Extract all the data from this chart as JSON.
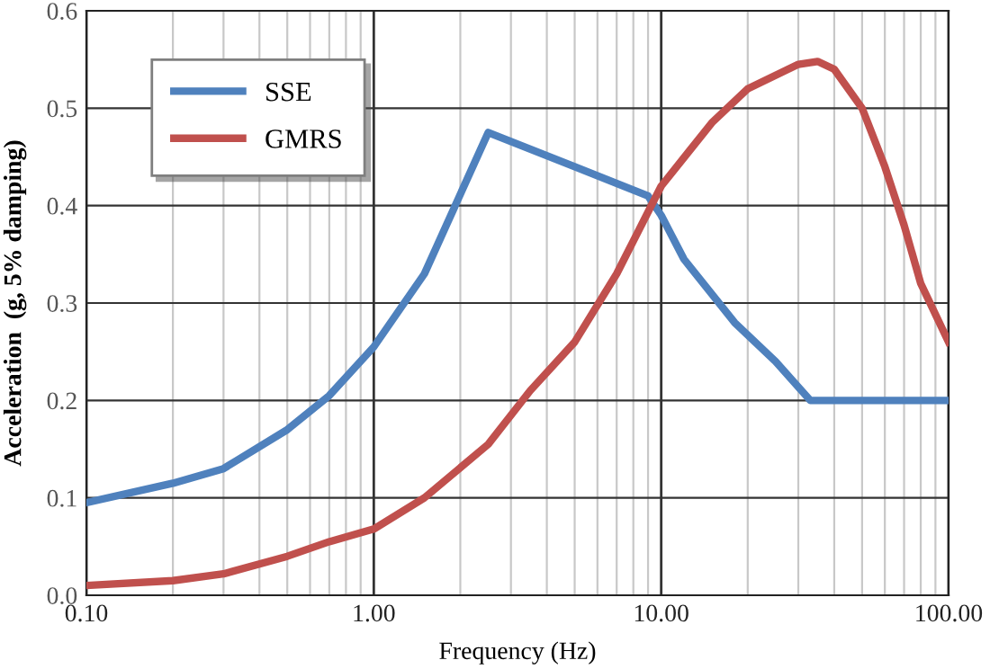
{
  "chart_data": {
    "type": "line",
    "xlabel": "Frequency (Hz)",
    "ylabel": "Acceleration  (g, 5% damping)",
    "log": "x",
    "grid": true,
    "legend": "top left",
    "marker": "none",
    "line_style": "solid",
    "xlim": [
      0.1,
      100
    ],
    "ylim": [
      0,
      0.6
    ],
    "xticks": [
      {
        "value": 0.1,
        "label": "0.10"
      },
      {
        "value": 0.2,
        "label": null
      },
      {
        "value": 0.3,
        "label": null
      },
      {
        "value": 0.4,
        "label": null
      },
      {
        "value": 0.5,
        "label": null
      },
      {
        "value": 0.6,
        "label": null
      },
      {
        "value": 0.7,
        "label": null
      },
      {
        "value": 0.8,
        "label": null
      },
      {
        "value": 0.9,
        "label": null
      },
      {
        "value": 1,
        "label": "1.00"
      },
      {
        "value": 2,
        "label": null
      },
      {
        "value": 3,
        "label": null
      },
      {
        "value": 4,
        "label": null
      },
      {
        "value": 5,
        "label": null
      },
      {
        "value": 6,
        "label": null
      },
      {
        "value": 7,
        "label": null
      },
      {
        "value": 8,
        "label": null
      },
      {
        "value": 9,
        "label": null
      },
      {
        "value": 10,
        "label": "10.00"
      },
      {
        "value": 20,
        "label": null
      },
      {
        "value": 30,
        "label": null
      },
      {
        "value": 40,
        "label": null
      },
      {
        "value": 50,
        "label": null
      },
      {
        "value": 60,
        "label": null
      },
      {
        "value": 70,
        "label": null
      },
      {
        "value": 80,
        "label": null
      },
      {
        "value": 90,
        "label": null
      },
      {
        "value": 100,
        "label": "100.00"
      }
    ],
    "yticks": [
      {
        "value": 0,
        "label": "0.0"
      },
      {
        "value": 0.1,
        "label": "0.1"
      },
      {
        "value": 0.2,
        "label": "0.2"
      },
      {
        "value": 0.3,
        "label": "0.3"
      },
      {
        "value": 0.4,
        "label": "0.4"
      },
      {
        "value": 0.5,
        "label": "0.5"
      },
      {
        "value": 0.6,
        "label": "0.6"
      }
    ],
    "series": [
      {
        "name": "SSE",
        "color": "#4f81bd",
        "x": [
          0.1,
          0.2,
          0.3,
          0.5,
          0.7,
          1.0,
          1.5,
          2.5,
          5,
          9,
          10,
          12,
          18,
          25,
          33,
          100
        ],
        "values": [
          0.095,
          0.115,
          0.13,
          0.17,
          0.205,
          0.255,
          0.33,
          0.475,
          0.44,
          0.41,
          0.39,
          0.345,
          0.28,
          0.24,
          0.2,
          0.2
        ]
      },
      {
        "name": "GMRS",
        "color": "#c0504d",
        "x": [
          0.1,
          0.2,
          0.3,
          0.5,
          0.7,
          1.0,
          1.5,
          2.5,
          3.5,
          5,
          7,
          10,
          15,
          20,
          30,
          35,
          40,
          50,
          60,
          70,
          80,
          100
        ],
        "values": [
          0.01,
          0.015,
          0.022,
          0.04,
          0.055,
          0.068,
          0.1,
          0.155,
          0.21,
          0.26,
          0.33,
          0.42,
          0.485,
          0.52,
          0.545,
          0.548,
          0.54,
          0.5,
          0.44,
          0.38,
          0.32,
          0.26
        ]
      }
    ]
  }
}
